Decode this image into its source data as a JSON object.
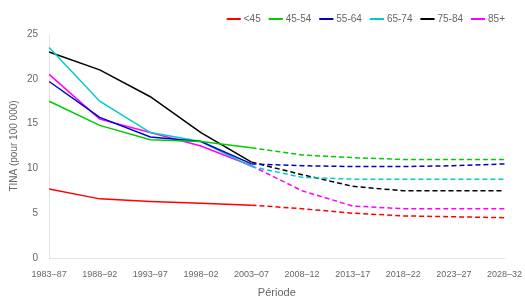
{
  "chart_data": {
    "type": "line",
    "categories": [
      "1983–87",
      "1988–92",
      "1993–97",
      "1998–02",
      "2003–07",
      "2008–12",
      "2013–17",
      "2018–22",
      "2023–27",
      "2028–32"
    ],
    "series": [
      {
        "name": "<45",
        "color": "#ff0000",
        "line_style": "solid",
        "values": [
          7.7,
          6.6,
          6.3,
          6.1,
          5.9,
          null,
          null,
          null,
          null,
          null
        ]
      },
      {
        "name": "<45",
        "color": "#ff0000",
        "line_style": "dashed",
        "values": [
          null,
          null,
          null,
          null,
          5.9,
          5.5,
          5.0,
          4.7,
          4.6,
          4.5
        ]
      },
      {
        "name": "45-54",
        "color": "#00cc00",
        "line_style": "solid",
        "values": [
          17.5,
          14.8,
          13.2,
          13.0,
          12.3,
          null,
          null,
          null,
          null,
          null
        ]
      },
      {
        "name": "45-54",
        "color": "#00cc00",
        "line_style": "dashed",
        "values": [
          null,
          null,
          null,
          null,
          12.3,
          11.5,
          11.2,
          11.0,
          11.0,
          11.0
        ]
      },
      {
        "name": "55-64",
        "color": "#0000cc",
        "line_style": "solid",
        "values": [
          19.7,
          15.7,
          13.5,
          13.0,
          10.5,
          null,
          null,
          null,
          null,
          null
        ]
      },
      {
        "name": "55-64",
        "color": "#0000cc",
        "line_style": "dashed",
        "values": [
          null,
          null,
          null,
          null,
          10.5,
          10.3,
          10.2,
          10.2,
          10.3,
          10.5
        ]
      },
      {
        "name": "65-74",
        "color": "#00cccc",
        "line_style": "solid",
        "values": [
          23.5,
          17.5,
          14.0,
          13.0,
          10.2,
          null,
          null,
          null,
          null,
          null
        ]
      },
      {
        "name": "65-74",
        "color": "#00cccc",
        "line_style": "dashed",
        "values": [
          null,
          null,
          null,
          null,
          10.2,
          9.0,
          8.8,
          8.8,
          8.8,
          8.8
        ]
      },
      {
        "name": "75-84",
        "color": "#000000",
        "line_style": "solid",
        "values": [
          23.0,
          21.0,
          18.0,
          14.0,
          10.7,
          null,
          null,
          null,
          null,
          null
        ]
      },
      {
        "name": "75-84",
        "color": "#000000",
        "line_style": "dashed",
        "values": [
          null,
          null,
          null,
          null,
          10.7,
          9.3,
          8.0,
          7.5,
          7.5,
          7.5
        ]
      },
      {
        "name": "85+",
        "color": "#ff00ff",
        "line_style": "solid",
        "values": [
          20.5,
          15.5,
          14.0,
          12.5,
          10.3,
          null,
          null,
          null,
          null,
          null
        ]
      },
      {
        "name": "85+",
        "color": "#ff00ff",
        "line_style": "dashed",
        "values": [
          null,
          null,
          null,
          null,
          10.3,
          7.5,
          5.8,
          5.5,
          5.5,
          5.5
        ]
      }
    ],
    "xlabel": "Période",
    "ylabel": "TINA (pour 100 000)",
    "ylim": [
      0,
      25
    ],
    "yticks": [
      0,
      5,
      10,
      15,
      20,
      25
    ],
    "grid": false,
    "legend": "upper right"
  }
}
